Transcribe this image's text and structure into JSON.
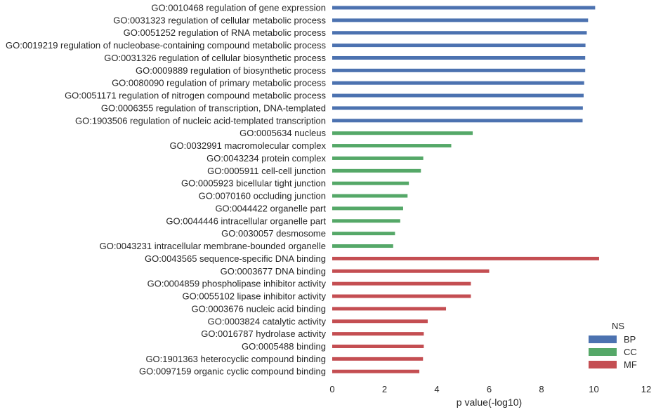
{
  "chart_data": {
    "type": "bar",
    "orientation": "horizontal",
    "xlabel": "p value(-log10)",
    "xlim": [
      0,
      12
    ],
    "xticks": [
      0,
      2,
      4,
      6,
      8,
      10,
      12
    ],
    "grid": false,
    "legend": {
      "title": "NS",
      "placement": "bottom-right",
      "entries": [
        {
          "label": "BP",
          "color": "#4c72b0"
        },
        {
          "label": "CC",
          "color": "#55a868"
        },
        {
          "label": "MF",
          "color": "#c44e52"
        }
      ]
    },
    "categories": [
      "GO:0010468 regulation of gene expression",
      "GO:0031323 regulation of cellular metabolic process",
      "GO:0051252 regulation of RNA metabolic process",
      "GO:0019219 regulation of nucleobase-containing compound metabolic process",
      "GO:0031326 regulation of cellular biosynthetic process",
      "GO:0009889 regulation of biosynthetic process",
      "GO:0080090 regulation of primary metabolic process",
      "GO:0051171 regulation of nitrogen compound metabolic process",
      "GO:0006355 regulation of transcription, DNA-templated",
      "GO:1903506 regulation of nucleic acid-templated transcription",
      "GO:0005634 nucleus",
      "GO:0032991 macromolecular complex",
      "GO:0043234 protein complex",
      "GO:0005911 cell-cell junction",
      "GO:0005923 bicellular tight junction",
      "GO:0070160 occluding junction",
      "GO:0044422 organelle part",
      "GO:0044446 intracellular organelle part",
      "GO:0030057 desmosome",
      "GO:0043231 intracellular membrane-bounded organelle",
      "GO:0043565 sequence-specific DNA binding",
      "GO:0003677 DNA binding",
      "GO:0004859 phospholipase inhibitor activity",
      "GO:0055102 lipase inhibitor activity",
      "GO:0003676 nucleic acid binding",
      "GO:0003824 catalytic activity",
      "GO:0016787 hydrolase activity",
      "GO:0005488 binding",
      "GO:1901363 heterocyclic compound binding",
      "GO:0097159 organic cyclic compound binding"
    ],
    "series": [
      {
        "name": "BP",
        "values": [
          10.05,
          9.78,
          9.73,
          9.68,
          9.67,
          9.67,
          9.63,
          9.61,
          9.58,
          9.57,
          null,
          null,
          null,
          null,
          null,
          null,
          null,
          null,
          null,
          null,
          null,
          null,
          null,
          null,
          null,
          null,
          null,
          null,
          null,
          null
        ]
      },
      {
        "name": "CC",
        "values": [
          null,
          null,
          null,
          null,
          null,
          null,
          null,
          null,
          null,
          null,
          5.37,
          4.55,
          3.48,
          3.39,
          2.93,
          2.88,
          2.71,
          2.6,
          2.4,
          2.33,
          null,
          null,
          null,
          null,
          null,
          null,
          null,
          null,
          null,
          null
        ]
      },
      {
        "name": "MF",
        "values": [
          null,
          null,
          null,
          null,
          null,
          null,
          null,
          null,
          null,
          null,
          null,
          null,
          null,
          null,
          null,
          null,
          null,
          null,
          null,
          null,
          10.2,
          6.0,
          5.3,
          5.3,
          4.35,
          3.65,
          3.5,
          3.5,
          3.47,
          3.33
        ]
      }
    ]
  }
}
